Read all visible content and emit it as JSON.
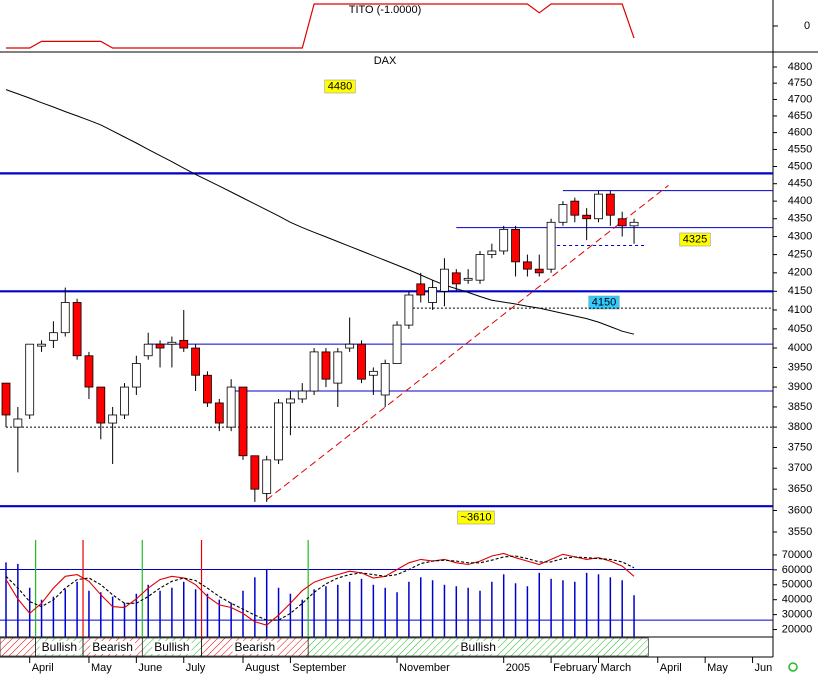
{
  "chart_data": [
    {
      "type": "line",
      "title": "TITO (-1.0000)",
      "color": "#dd0000",
      "ylim": [
        -1.18,
        1.18
      ],
      "yticks": [
        0
      ],
      "values": [
        -1,
        -1,
        -1,
        -0.7,
        -0.7,
        -0.7,
        -0.7,
        -0.7,
        -0.7,
        -1,
        -1,
        -1,
        -1,
        -1,
        -1,
        -1,
        -1,
        -1,
        -1,
        -1,
        -1,
        -1,
        -1,
        -1,
        -1,
        -1,
        1,
        1,
        1,
        1,
        1,
        1,
        1,
        1,
        1,
        1,
        1,
        1,
        1,
        1,
        1,
        1,
        1,
        1,
        1,
        0.6,
        1,
        1,
        1,
        1,
        1,
        1,
        1,
        -0.55,
        null,
        null,
        null,
        null,
        null,
        null,
        null,
        null,
        null,
        null
      ]
    },
    {
      "type": "candlestick",
      "title": "DAX",
      "log_scale": true,
      "up_color": "#ffffff",
      "down_color": "#ff0000",
      "categories": [
        null,
        null,
        "April",
        null,
        null,
        null,
        null,
        "May",
        null,
        null,
        null,
        "June",
        null,
        null,
        null,
        "July",
        null,
        null,
        null,
        null,
        "August",
        null,
        null,
        null,
        "September",
        null,
        null,
        null,
        null,
        null,
        null,
        null,
        null,
        "November",
        null,
        null,
        null,
        null,
        null,
        null,
        null,
        null,
        "2005",
        null,
        null,
        null,
        "February",
        null,
        null,
        null,
        "March",
        null,
        null,
        null,
        null,
        "April",
        null,
        null,
        null,
        "May",
        null,
        null,
        null,
        "Jun"
      ],
      "open": [
        3910,
        3800,
        3830,
        4005,
        4020,
        4040,
        4120,
        3980,
        3900,
        3810,
        3830,
        3900,
        3980,
        4010,
        4010,
        4020,
        4000,
        3930,
        3860,
        3800,
        3900,
        3730,
        3640,
        3720,
        3860,
        3870,
        3890,
        3990,
        3910,
        4000,
        4010,
        3930,
        3880,
        3960,
        4060,
        4170,
        4120,
        4150,
        4200,
        4180,
        4180,
        4250,
        4260,
        4320,
        4230,
        4210,
        4210,
        4340,
        4400,
        4360,
        4350,
        4420,
        4350,
        4330,
        null,
        null,
        null,
        null,
        null,
        null,
        null,
        null,
        null,
        null
      ],
      "high": [
        3910,
        3850,
        4010,
        4020,
        4070,
        4160,
        4130,
        3990,
        3900,
        3850,
        3910,
        3980,
        4040,
        4020,
        4030,
        4100,
        4010,
        3940,
        3870,
        3920,
        3900,
        3730,
        3730,
        3870,
        3890,
        3910,
        4000,
        4000,
        4000,
        4080,
        4020,
        3950,
        3970,
        4070,
        4150,
        4200,
        4180,
        4240,
        4210,
        4210,
        4260,
        4280,
        4330,
        4330,
        4250,
        4250,
        4350,
        4400,
        4410,
        4380,
        4430,
        4430,
        4370,
        4350,
        null,
        null,
        null,
        null,
        null,
        null,
        null,
        null,
        null,
        null
      ],
      "low": [
        3800,
        3690,
        3820,
        3990,
        4000,
        4030,
        3970,
        3870,
        3770,
        3710,
        3820,
        3880,
        3970,
        3950,
        3950,
        3990,
        3890,
        3850,
        3790,
        3790,
        3720,
        3620,
        3620,
        3710,
        3780,
        3860,
        3880,
        3900,
        3850,
        3990,
        3910,
        3880,
        3850,
        3960,
        4050,
        4120,
        4100,
        4110,
        4150,
        4170,
        4170,
        4240,
        4250,
        4190,
        4190,
        4190,
        4200,
        4330,
        4340,
        4290,
        4340,
        4330,
        4300,
        4280,
        null,
        null,
        null,
        null,
        null,
        null,
        null,
        null,
        null,
        null
      ],
      "close": [
        3830,
        3820,
        4010,
        4010,
        4040,
        4120,
        3980,
        3900,
        3810,
        3830,
        3900,
        3960,
        4010,
        4000,
        4015,
        4000,
        3930,
        3860,
        3810,
        3900,
        3730,
        3650,
        3720,
        3860,
        3870,
        3890,
        3990,
        3920,
        3990,
        4010,
        3920,
        3940,
        3960,
        4060,
        4140,
        4140,
        4160,
        4210,
        4170,
        4185,
        4250,
        4260,
        4320,
        4230,
        4210,
        4200,
        4340,
        4390,
        4360,
        4350,
        4420,
        4360,
        4330,
        4340,
        null,
        null,
        null,
        null,
        null,
        null,
        null,
        null,
        null,
        null
      ],
      "ylim": [
        3550,
        4800
      ],
      "yticks": [
        3550,
        3600,
        3650,
        3700,
        3750,
        3800,
        3850,
        3900,
        3950,
        4000,
        4050,
        4100,
        4150,
        4200,
        4250,
        4300,
        4350,
        4400,
        4450,
        4500,
        4550,
        4600,
        4650,
        4700,
        4750,
        4800
      ],
      "moving_average": {
        "color": "#000000",
        "values": [
          4730,
          4717,
          4704,
          4690,
          4677,
          4663,
          4650,
          4637,
          4623,
          4605,
          4587,
          4569,
          4550,
          4532,
          4514,
          4495,
          4477,
          4460,
          4443,
          4426,
          4409,
          4392,
          4375,
          4358,
          4340,
          4325,
          4312,
          4299,
          4286,
          4273,
          4260,
          4247,
          4234,
          4221,
          4208,
          4194,
          4180,
          4167,
          4157,
          4147,
          4136,
          4126,
          4121,
          4116,
          4110,
          4105,
          4098,
          4091,
          4084,
          4077,
          4068,
          4056,
          4044,
          4036,
          null,
          null,
          null,
          null,
          null,
          null,
          null,
          null,
          null,
          null
        ]
      },
      "trend_line": {
        "color": "#dd0000",
        "x": [
          22,
          55.9
        ],
        "values": [
          3625,
          4445
        ]
      },
      "levels": [
        {
          "value": 4480,
          "style": "thick",
          "color": "#0000cc",
          "label": "4480",
          "label_color": "#ffff00"
        },
        {
          "value": 4150,
          "style": "thick",
          "color": "#0000cc",
          "label": "4150",
          "label_color": "#33ccff"
        },
        {
          "value": 3610,
          "style": "thick",
          "color": "#0000cc",
          "label": "~3610",
          "label_color": "#ffff00"
        },
        {
          "value": 4325,
          "style": "thin",
          "color": "#0000cc",
          "start": 38,
          "label": "4325",
          "label_color": "#ffff00"
        },
        {
          "value": 4430,
          "style": "thin",
          "color": "#0000cc",
          "start": 47
        },
        {
          "value": 4010,
          "style": "thin",
          "color": "#0000cc",
          "start": 12
        },
        {
          "value": 3890,
          "style": "thin",
          "color": "#0000cc",
          "start": 19
        },
        {
          "value": 4105,
          "style": "dotted",
          "color": "#000000",
          "start": 34
        },
        {
          "value": 3800,
          "style": "dotted",
          "color": "#000000",
          "start": 0
        },
        {
          "value": 4275,
          "style": "dashed",
          "color": "#0000cc",
          "start": 46,
          "end": 54
        }
      ]
    },
    {
      "type": "volume_oscillator",
      "ylim": [
        15000,
        80000
      ],
      "yticks": [
        20000,
        30000,
        40000,
        50000,
        60000,
        70000
      ],
      "volume": {
        "color": "#0000cc",
        "values": [
          65000,
          64000,
          48000,
          40000,
          42000,
          47000,
          52000,
          46000,
          45000,
          42000,
          38000,
          44000,
          50000,
          46000,
          48000,
          52000,
          47000,
          44000,
          40000,
          38000,
          46000,
          55000,
          60000,
          48000,
          44000,
          40000,
          47000,
          49000,
          50000,
          52000,
          54000,
          50000,
          48000,
          45000,
          52000,
          55000,
          53000,
          50000,
          49000,
          48000,
          46000,
          52000,
          57000,
          51000,
          49000,
          58000,
          54000,
          53000,
          52000,
          58000,
          57000,
          55000,
          53000,
          43000,
          null,
          null,
          null,
          null,
          null,
          null,
          null,
          null,
          null,
          null
        ]
      },
      "osc_lim": [
        0,
        115
      ],
      "osc_levels": [
        20,
        80
      ],
      "osc_level_color": "#0000cc",
      "series": [
        {
          "color": "#dd0000",
          "values": [
            68,
            45,
            28,
            40,
            58,
            72,
            74,
            66,
            50,
            36,
            35,
            45,
            58,
            68,
            72,
            70,
            62,
            48,
            38,
            35,
            28,
            18,
            14,
            26,
            40,
            55,
            65,
            70,
            74,
            78,
            76,
            70,
            72,
            80,
            88,
            92,
            90,
            92,
            88,
            86,
            90,
            96,
            99,
            94,
            90,
            86,
            92,
            98,
            95,
            92,
            94,
            90,
            84,
            72,
            null,
            null,
            null,
            null,
            null,
            null,
            null,
            null,
            null,
            null
          ]
        },
        {
          "color": "#000000",
          "dash": true,
          "values": [
            72,
            58,
            42,
            36,
            44,
            58,
            68,
            70,
            62,
            50,
            40,
            40,
            48,
            58,
            66,
            70,
            67,
            58,
            48,
            40,
            33,
            26,
            20,
            20,
            28,
            40,
            53,
            63,
            70,
            74,
            76,
            74,
            72,
            74,
            80,
            87,
            90,
            91,
            90,
            88,
            88,
            91,
            95,
            96,
            93,
            89,
            89,
            93,
            95,
            94,
            93,
            92,
            89,
            82,
            null,
            null,
            null,
            null,
            null,
            null,
            null,
            null,
            null,
            null
          ]
        }
      ],
      "regions": [
        {
          "start": -0.5,
          "end": 2.5,
          "color": "#ee0000"
        },
        {
          "start": 2.5,
          "end": 6.5,
          "color": "#22bb22",
          "label": "Bullish"
        },
        {
          "start": 6.5,
          "end": 11.5,
          "color": "#ee0000",
          "label": "Bearish"
        },
        {
          "start": 11.5,
          "end": 16.5,
          "color": "#22bb22",
          "label": "Bullish"
        },
        {
          "start": 16.5,
          "end": 25.5,
          "color": "#ee0000",
          "label": "Bearish"
        },
        {
          "start": 25.5,
          "end": 54.2,
          "color": "#22bb22",
          "label": "Bullish"
        }
      ]
    }
  ]
}
